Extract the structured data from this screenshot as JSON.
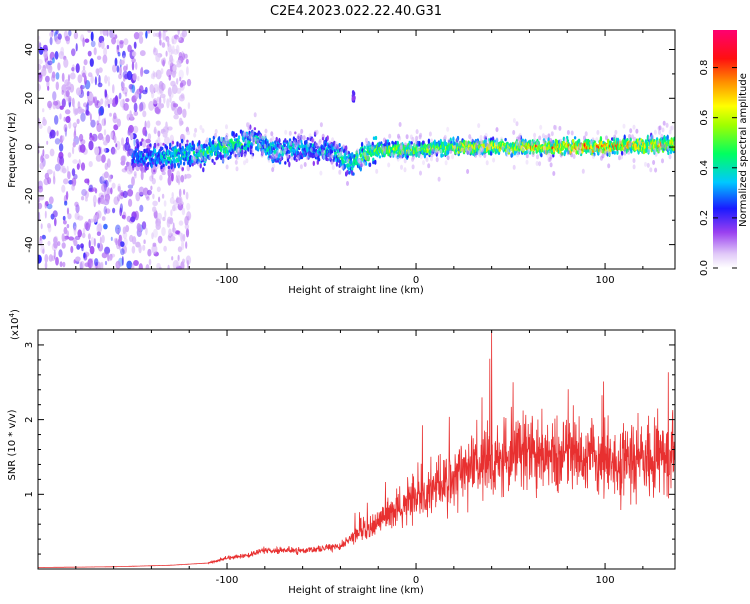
{
  "page": {
    "title": "C2E4.2023.022.22.40.G31"
  },
  "chart_data": [
    {
      "type": "heatmap",
      "title": "C2E4.2023.022.22.40.G31",
      "xlabel": "Height of straight line (km)",
      "ylabel": "Frequency (Hz)",
      "xlim": [
        -200,
        137
      ],
      "ylim": [
        -50,
        48
      ],
      "xticks": [
        -100,
        0,
        100
      ],
      "xtick_labels": [
        "-100",
        "0",
        "100"
      ],
      "yticks": [
        -40,
        -20,
        0,
        20,
        40
      ],
      "ytick_labels": [
        "-40",
        "-20",
        "0",
        "20",
        "40"
      ],
      "colorbar": {
        "label": "Normalized spectral amplitude",
        "range": [
          0,
          0.95
        ],
        "ticks": [
          0.0,
          0.2,
          0.4,
          0.6,
          0.8
        ],
        "tick_labels": [
          "0.0",
          "0.2",
          "0.4",
          "0.6",
          "0.8"
        ],
        "colormap": [
          "#ffffff",
          "#d7b8f5",
          "#8a2be2",
          "#2020ff",
          "#00ccff",
          "#00ff80",
          "#40ff00",
          "#ffff00",
          "#ff8000",
          "#ff0000",
          "#ff0070"
        ]
      },
      "ridge": {
        "x": [
          -150,
          -130,
          -110,
          -95,
          -85,
          -75,
          -60,
          -45,
          -35,
          -20,
          0,
          20,
          40,
          60,
          80,
          100,
          120,
          137
        ],
        "frequency": [
          -4,
          -4,
          -2,
          1,
          3,
          -2,
          0,
          -2,
          -6,
          -1,
          -1,
          0,
          0,
          0,
          0,
          0,
          1,
          1
        ],
        "amplitude": [
          0.35,
          0.45,
          0.5,
          0.5,
          0.45,
          0.45,
          0.4,
          0.4,
          0.5,
          0.6,
          0.6,
          0.65,
          0.7,
          0.75,
          0.8,
          0.85,
          0.75,
          0.7
        ]
      },
      "noise_region": {
        "x_range": [
          -200,
          -120
        ],
        "frequency_range": [
          -50,
          48
        ]
      }
    },
    {
      "type": "line",
      "xlabel": "Height of straight line (km)",
      "ylabel": "SNR (10 * v/v)",
      "y_scale_label": "(x10",
      "y_scale_exp": "4",
      "y_scale_close": ")",
      "xlim": [
        -200,
        137
      ],
      "ylim": [
        0,
        3.2
      ],
      "xticks": [
        -100,
        0,
        100
      ],
      "xtick_labels": [
        "-100",
        "0",
        "100"
      ],
      "yticks": [
        1,
        2,
        3
      ],
      "ytick_labels": [
        "1",
        "2",
        "3"
      ],
      "color": "#e83030",
      "envelope": {
        "x": [
          -200,
          -160,
          -130,
          -110,
          -100,
          -90,
          -80,
          -60,
          -40,
          -30,
          -20,
          0,
          20,
          40,
          60,
          80,
          100,
          120,
          137
        ],
        "y": [
          0.02,
          0.03,
          0.05,
          0.08,
          0.15,
          0.18,
          0.25,
          0.25,
          0.3,
          0.5,
          0.6,
          1.0,
          1.2,
          1.5,
          1.55,
          1.5,
          1.45,
          1.5,
          1.55
        ]
      },
      "peak": {
        "x": 40,
        "y": 3.2
      }
    }
  ]
}
